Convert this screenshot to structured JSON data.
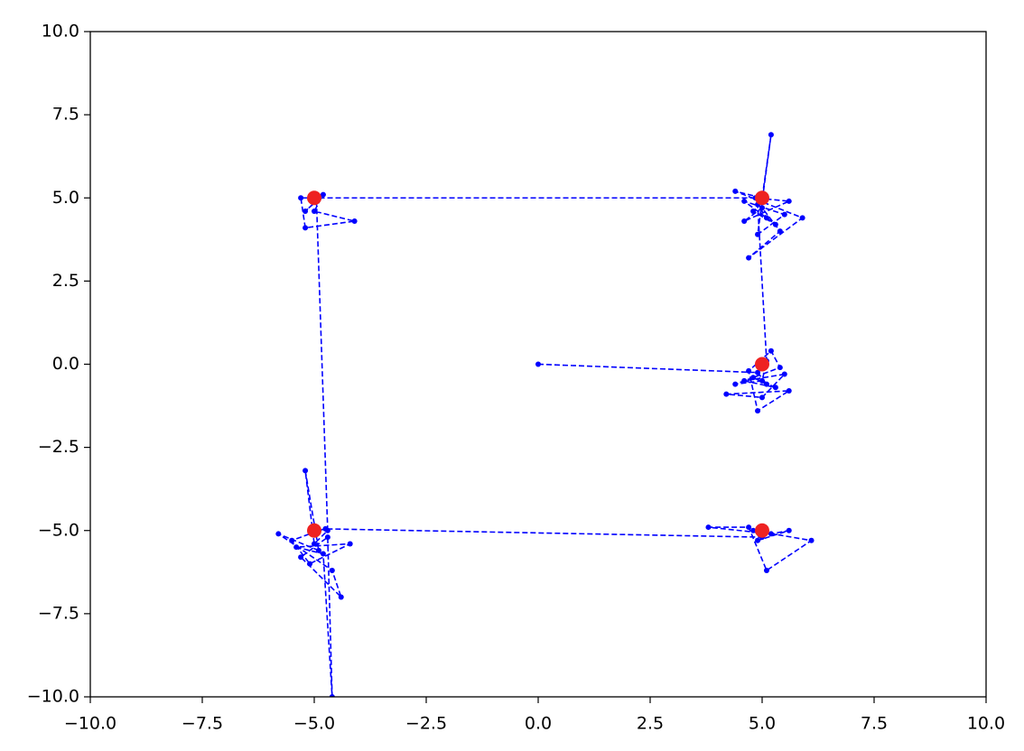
{
  "chart_data": {
    "type": "line",
    "xlim": [
      -10,
      10
    ],
    "ylim": [
      -10,
      10
    ],
    "xticks": [
      {
        "value": -10,
        "label": "−10.0"
      },
      {
        "value": -7.5,
        "label": "−7.5"
      },
      {
        "value": -5,
        "label": "−5.0"
      },
      {
        "value": -2.5,
        "label": "−2.5"
      },
      {
        "value": 0,
        "label": "0.0"
      },
      {
        "value": 2.5,
        "label": "2.5"
      },
      {
        "value": 5,
        "label": "5.0"
      },
      {
        "value": 7.5,
        "label": "7.5"
      },
      {
        "value": 10,
        "label": "10.0"
      }
    ],
    "yticks": [
      {
        "value": -10,
        "label": "−10.0"
      },
      {
        "value": -7.5,
        "label": "−7.5"
      },
      {
        "value": -5,
        "label": "−5.0"
      },
      {
        "value": -2.5,
        "label": "−2.5"
      },
      {
        "value": 0,
        "label": "0.0"
      },
      {
        "value": 2.5,
        "label": "2.5"
      },
      {
        "value": 5,
        "label": "5.0"
      },
      {
        "value": 7.5,
        "label": "7.5"
      },
      {
        "value": 10,
        "label": "10.0"
      }
    ],
    "grid": false,
    "series": [
      {
        "color": "#0000ff",
        "linestyle": "dashed",
        "marker_size": 3,
        "x": [
          0,
          4.9,
          5.1,
          4.8,
          5.3,
          4.6,
          5.5,
          5.0,
          4.2,
          5.6,
          4.9,
          4.7,
          5.2,
          5.4,
          4.4,
          5.0,
          5.1,
          4.9,
          5.1,
          4.8,
          5.3,
          4.6,
          5.5,
          4.9,
          5.2,
          5.0,
          4.4,
          5.9,
          4.7,
          5.4,
          5.0,
          4.6,
          5.6,
          4.85,
          -4.9,
          -5.3,
          -5.2,
          -4.1,
          -5.0,
          -4.8,
          -5.2,
          -4.95,
          -4.7,
          -5.0,
          -5.2,
          -4.9,
          -5.8,
          -4.6,
          -4.4,
          -5.3,
          -4.7,
          -4.6,
          -4.8,
          -5.4,
          -4.2,
          -5.1,
          -5.5,
          -4.9,
          -4.75,
          5.0,
          4.8,
          6.1,
          5.1,
          4.7,
          3.8,
          5.2,
          5.6,
          4.9
        ],
        "values": [
          0,
          -0.25,
          -0.6,
          -0.4,
          -0.7,
          -0.5,
          -0.3,
          -1.0,
          -0.9,
          -0.8,
          -1.4,
          -0.2,
          0.4,
          -0.1,
          -0.6,
          -0.5,
          0.1,
          4.8,
          4.4,
          4.6,
          4.2,
          4.9,
          4.5,
          3.9,
          6.9,
          5.0,
          5.2,
          4.4,
          3.2,
          4.0,
          4.7,
          4.3,
          4.9,
          5.0,
          5.0,
          5.0,
          4.1,
          4.3,
          4.6,
          5.1,
          4.6,
          4.9,
          -5.0,
          -5.4,
          -3.2,
          -5.6,
          -5.1,
          -6.2,
          -7.0,
          -5.8,
          -5.2,
          -10.0,
          -5.7,
          -5.5,
          -5.4,
          -6.0,
          -5.3,
          -5.0,
          -4.95,
          -5.2,
          -5.0,
          -5.3,
          -6.2,
          -4.9,
          -4.9,
          -5.1,
          -5.0,
          -5.3
        ]
      },
      {
        "color": "#ee2222",
        "linestyle": "none",
        "marker_size": 8,
        "x": [
          5,
          5,
          -5,
          -5,
          5
        ],
        "values": [
          0,
          5,
          5,
          -5,
          -5
        ]
      }
    ]
  }
}
